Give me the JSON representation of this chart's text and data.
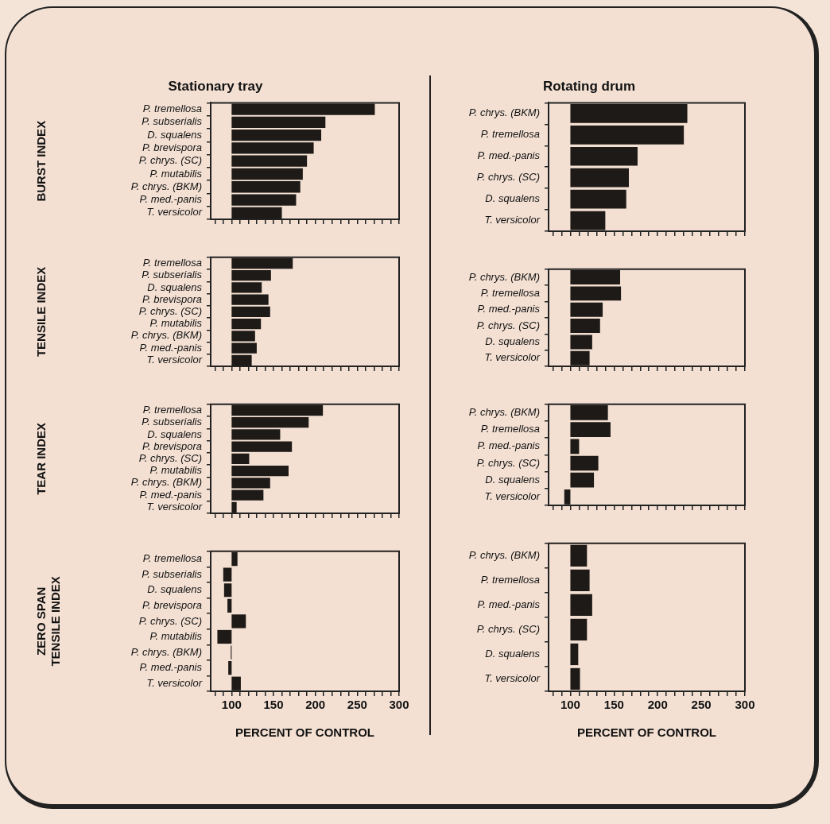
{
  "chart_data": [
    {
      "type": "bar",
      "orientation": "horizontal",
      "title": "Stationary tray",
      "ylabel": "BURST INDEX",
      "categories": [
        "P. tremellosa",
        "P. subserialis",
        "D. squalens",
        "P. brevispora",
        "P. chrys. (SC)",
        "P. mutabilis",
        "P. chrys. (BKM)",
        "P. med.-panis",
        "T. versicolor"
      ],
      "base": [
        100,
        100,
        100,
        100,
        100,
        100,
        100,
        100,
        100
      ],
      "values": [
        171,
        112,
        107,
        98,
        90,
        85,
        82,
        77,
        60
      ],
      "color": "#1e1a17",
      "xlim": [
        75,
        300
      ],
      "xticks": [
        {
          "value": 80,
          "label": null
        },
        {
          "value": 90,
          "label": null
        },
        {
          "value": 100,
          "label": null
        },
        {
          "value": 110,
          "label": null
        },
        {
          "value": 120,
          "label": null
        },
        {
          "value": 130,
          "label": null
        },
        {
          "value": 140,
          "label": null
        },
        {
          "value": 150,
          "label": null
        },
        {
          "value": 160,
          "label": null
        },
        {
          "value": 170,
          "label": null
        },
        {
          "value": 180,
          "label": null
        },
        {
          "value": 190,
          "label": null
        },
        {
          "value": 200,
          "label": null
        },
        {
          "value": 210,
          "label": null
        },
        {
          "value": 220,
          "label": null
        },
        {
          "value": 230,
          "label": null
        },
        {
          "value": 240,
          "label": null
        },
        {
          "value": 250,
          "label": null
        },
        {
          "value": 260,
          "label": null
        },
        {
          "value": 270,
          "label": null
        },
        {
          "value": 280,
          "label": null
        },
        {
          "value": 290,
          "label": null
        },
        {
          "value": 300,
          "label": null
        }
      ],
      "tick_labels": "y",
      "grid": false,
      "legend": false
    },
    {
      "type": "bar",
      "orientation": "horizontal",
      "ylabel": "TENSILE INDEX",
      "categories": [
        "P. tremellosa",
        "P. subserialis",
        "D. squalens",
        "P. brevispora",
        "P. chrys. (SC)",
        "P. mutabilis",
        "P. chrys. (BKM)",
        "P. med.-panis",
        "T. versicolor"
      ],
      "base": [
        100,
        100,
        100,
        100,
        100,
        100,
        100,
        100,
        100
      ],
      "values": [
        73,
        47,
        36,
        44,
        46,
        35,
        28,
        30,
        24
      ],
      "color": "#1e1a17",
      "xlim": [
        75,
        300
      ],
      "xticks": [
        {
          "value": 80,
          "label": null
        },
        {
          "value": 90,
          "label": null
        },
        {
          "value": 100,
          "label": null
        },
        {
          "value": 110,
          "label": null
        },
        {
          "value": 120,
          "label": null
        },
        {
          "value": 130,
          "label": null
        },
        {
          "value": 140,
          "label": null
        },
        {
          "value": 150,
          "label": null
        },
        {
          "value": 160,
          "label": null
        },
        {
          "value": 170,
          "label": null
        },
        {
          "value": 180,
          "label": null
        },
        {
          "value": 190,
          "label": null
        },
        {
          "value": 200,
          "label": null
        },
        {
          "value": 210,
          "label": null
        },
        {
          "value": 220,
          "label": null
        },
        {
          "value": 230,
          "label": null
        },
        {
          "value": 240,
          "label": null
        },
        {
          "value": 250,
          "label": null
        },
        {
          "value": 260,
          "label": null
        },
        {
          "value": 270,
          "label": null
        },
        {
          "value": 280,
          "label": null
        },
        {
          "value": 290,
          "label": null
        },
        {
          "value": 300,
          "label": null
        }
      ],
      "tick_labels": "y",
      "grid": false,
      "legend": false
    },
    {
      "type": "bar",
      "orientation": "horizontal",
      "ylabel": "TEAR INDEX",
      "categories": [
        "P. tremellosa",
        "P. subserialis",
        "D. squalens",
        "P. brevispora",
        "P. chrys. (SC)",
        "P. mutabilis",
        "P. chrys. (BKM)",
        "P. med.-panis",
        "T. versicolor"
      ],
      "base": [
        100,
        100,
        100,
        100,
        100,
        100,
        100,
        100,
        100
      ],
      "values": [
        109,
        92,
        58,
        72,
        21,
        68,
        46,
        38,
        6
      ],
      "color": "#1e1a17",
      "xlim": [
        75,
        300
      ],
      "xticks": [
        {
          "value": 80,
          "label": null
        },
        {
          "value": 90,
          "label": null
        },
        {
          "value": 100,
          "label": null
        },
        {
          "value": 110,
          "label": null
        },
        {
          "value": 120,
          "label": null
        },
        {
          "value": 130,
          "label": null
        },
        {
          "value": 140,
          "label": null
        },
        {
          "value": 150,
          "label": null
        },
        {
          "value": 160,
          "label": null
        },
        {
          "value": 170,
          "label": null
        },
        {
          "value": 180,
          "label": null
        },
        {
          "value": 190,
          "label": null
        },
        {
          "value": 200,
          "label": null
        },
        {
          "value": 210,
          "label": null
        },
        {
          "value": 220,
          "label": null
        },
        {
          "value": 230,
          "label": null
        },
        {
          "value": 240,
          "label": null
        },
        {
          "value": 250,
          "label": null
        },
        {
          "value": 260,
          "label": null
        },
        {
          "value": 270,
          "label": null
        },
        {
          "value": 280,
          "label": null
        },
        {
          "value": 290,
          "label": null
        },
        {
          "value": 300,
          "label": null
        }
      ],
      "tick_labels": "y",
      "grid": false,
      "legend": false
    },
    {
      "type": "bar",
      "orientation": "horizontal",
      "ylabel": "ZERO SPAN\nTENSILE INDEX",
      "xlabel": "PERCENT OF CONTROL",
      "categories": [
        "P. tremellosa",
        "P. subserialis",
        "D. squalens",
        "P. brevispora",
        "P. chrys. (SC)",
        "P. mutabilis",
        "P. chrys. (BKM)",
        "P. med.-panis",
        "T. versicolor"
      ],
      "base": [
        100,
        100,
        100,
        100,
        100,
        100,
        100,
        100,
        100
      ],
      "values": [
        7,
        -10,
        -9,
        -5,
        17,
        -17,
        -1,
        -4,
        11
      ],
      "color": "#1e1a17",
      "xlim": [
        75,
        300
      ],
      "xticks": [
        {
          "value": 80,
          "label": null
        },
        {
          "value": 90,
          "label": null
        },
        100,
        {
          "value": 110,
          "label": null
        },
        {
          "value": 120,
          "label": null
        },
        {
          "value": 130,
          "label": null
        },
        {
          "value": 140,
          "label": null
        },
        150,
        {
          "value": 160,
          "label": null
        },
        {
          "value": 170,
          "label": null
        },
        {
          "value": 180,
          "label": null
        },
        {
          "value": 190,
          "label": null
        },
        200,
        {
          "value": 210,
          "label": null
        },
        {
          "value": 220,
          "label": null
        },
        {
          "value": 230,
          "label": null
        },
        {
          "value": 240,
          "label": null
        },
        250,
        {
          "value": 260,
          "label": null
        },
        {
          "value": 270,
          "label": null
        },
        {
          "value": 280,
          "label": null
        },
        {
          "value": 290,
          "label": null
        },
        300
      ],
      "grid": false,
      "legend": false
    },
    {
      "type": "bar",
      "orientation": "horizontal",
      "title": "Rotating drum",
      "categories": [
        "P. chrys. (BKM)",
        "P. tremellosa",
        "P. med.-panis",
        "P. chrys. (SC)",
        "D. squalens",
        "T. versicolor"
      ],
      "base": [
        100,
        100,
        100,
        100,
        100,
        100
      ],
      "values": [
        134,
        130,
        77,
        67,
        64,
        40
      ],
      "color": "#1e1a17",
      "xlim": [
        75,
        300
      ],
      "xticks": [
        {
          "value": 80,
          "label": null
        },
        {
          "value": 90,
          "label": null
        },
        {
          "value": 100,
          "label": null
        },
        {
          "value": 110,
          "label": null
        },
        {
          "value": 120,
          "label": null
        },
        {
          "value": 130,
          "label": null
        },
        {
          "value": 140,
          "label": null
        },
        {
          "value": 150,
          "label": null
        },
        {
          "value": 160,
          "label": null
        },
        {
          "value": 170,
          "label": null
        },
        {
          "value": 180,
          "label": null
        },
        {
          "value": 190,
          "label": null
        },
        {
          "value": 200,
          "label": null
        },
        {
          "value": 210,
          "label": null
        },
        {
          "value": 220,
          "label": null
        },
        {
          "value": 230,
          "label": null
        },
        {
          "value": 240,
          "label": null
        },
        {
          "value": 250,
          "label": null
        },
        {
          "value": 260,
          "label": null
        },
        {
          "value": 270,
          "label": null
        },
        {
          "value": 280,
          "label": null
        },
        {
          "value": 290,
          "label": null
        },
        {
          "value": 300,
          "label": null
        }
      ],
      "tick_labels": "y",
      "grid": false,
      "legend": false
    },
    {
      "type": "bar",
      "orientation": "horizontal",
      "categories": [
        "P. chrys. (BKM)",
        "P. tremellosa",
        "P. med.-panis",
        "P. chrys. (SC)",
        "D. squalens",
        "T. versicolor"
      ],
      "base": [
        100,
        100,
        100,
        100,
        100,
        100
      ],
      "values": [
        57,
        58,
        37,
        34,
        25,
        22
      ],
      "color": "#1e1a17",
      "xlim": [
        75,
        300
      ],
      "xticks": [
        {
          "value": 80,
          "label": null
        },
        {
          "value": 90,
          "label": null
        },
        {
          "value": 100,
          "label": null
        },
        {
          "value": 110,
          "label": null
        },
        {
          "value": 120,
          "label": null
        },
        {
          "value": 130,
          "label": null
        },
        {
          "value": 140,
          "label": null
        },
        {
          "value": 150,
          "label": null
        },
        {
          "value": 160,
          "label": null
        },
        {
          "value": 170,
          "label": null
        },
        {
          "value": 180,
          "label": null
        },
        {
          "value": 190,
          "label": null
        },
        {
          "value": 200,
          "label": null
        },
        {
          "value": 210,
          "label": null
        },
        {
          "value": 220,
          "label": null
        },
        {
          "value": 230,
          "label": null
        },
        {
          "value": 240,
          "label": null
        },
        {
          "value": 250,
          "label": null
        },
        {
          "value": 260,
          "label": null
        },
        {
          "value": 270,
          "label": null
        },
        {
          "value": 280,
          "label": null
        },
        {
          "value": 290,
          "label": null
        },
        {
          "value": 300,
          "label": null
        }
      ],
      "tick_labels": "y",
      "grid": false,
      "legend": false
    },
    {
      "type": "bar",
      "orientation": "horizontal",
      "categories": [
        "P. chrys. (BKM)",
        "P. tremellosa",
        "P. med.-panis",
        "P. chrys. (SC)",
        "D. squalens",
        "T. versicolor"
      ],
      "base": [
        100,
        100,
        100,
        100,
        100,
        100
      ],
      "values": [
        43,
        46,
        10,
        32,
        27,
        -7
      ],
      "color": "#1e1a17",
      "xlim": [
        75,
        300
      ],
      "xticks": [
        {
          "value": 80,
          "label": null
        },
        {
          "value": 90,
          "label": null
        },
        {
          "value": 100,
          "label": null
        },
        {
          "value": 110,
          "label": null
        },
        {
          "value": 120,
          "label": null
        },
        {
          "value": 130,
          "label": null
        },
        {
          "value": 140,
          "label": null
        },
        {
          "value": 150,
          "label": null
        },
        {
          "value": 160,
          "label": null
        },
        {
          "value": 170,
          "label": null
        },
        {
          "value": 180,
          "label": null
        },
        {
          "value": 190,
          "label": null
        },
        {
          "value": 200,
          "label": null
        },
        {
          "value": 210,
          "label": null
        },
        {
          "value": 220,
          "label": null
        },
        {
          "value": 230,
          "label": null
        },
        {
          "value": 240,
          "label": null
        },
        {
          "value": 250,
          "label": null
        },
        {
          "value": 260,
          "label": null
        },
        {
          "value": 270,
          "label": null
        },
        {
          "value": 280,
          "label": null
        },
        {
          "value": 290,
          "label": null
        },
        {
          "value": 300,
          "label": null
        }
      ],
      "tick_labels": "y",
      "grid": false,
      "legend": false
    },
    {
      "type": "bar",
      "orientation": "horizontal",
      "xlabel": "PERCENT OF CONTROL",
      "categories": [
        "P. chrys. (BKM)",
        "P. tremellosa",
        "P. med.-panis",
        "P. chrys. (SC)",
        "D. squalens",
        "T. versicolor"
      ],
      "base": [
        100,
        100,
        100,
        100,
        100,
        100
      ],
      "values": [
        19,
        22,
        25,
        19,
        9,
        11
      ],
      "color": "#1e1a17",
      "xlim": [
        75,
        300
      ],
      "xticks": [
        {
          "value": 80,
          "label": null
        },
        {
          "value": 90,
          "label": null
        },
        100,
        {
          "value": 110,
          "label": null
        },
        {
          "value": 120,
          "label": null
        },
        {
          "value": 130,
          "label": null
        },
        {
          "value": 140,
          "label": null
        },
        150,
        {
          "value": 160,
          "label": null
        },
        {
          "value": 170,
          "label": null
        },
        {
          "value": 180,
          "label": null
        },
        {
          "value": 190,
          "label": null
        },
        200,
        {
          "value": 210,
          "label": null
        },
        {
          "value": 220,
          "label": null
        },
        {
          "value": 230,
          "label": null
        },
        {
          "value": 240,
          "label": null
        },
        250,
        {
          "value": 260,
          "label": null
        },
        {
          "value": 270,
          "label": null
        },
        {
          "value": 280,
          "label": null
        },
        {
          "value": 290,
          "label": null
        },
        300
      ],
      "grid": false,
      "legend": false
    }
  ]
}
